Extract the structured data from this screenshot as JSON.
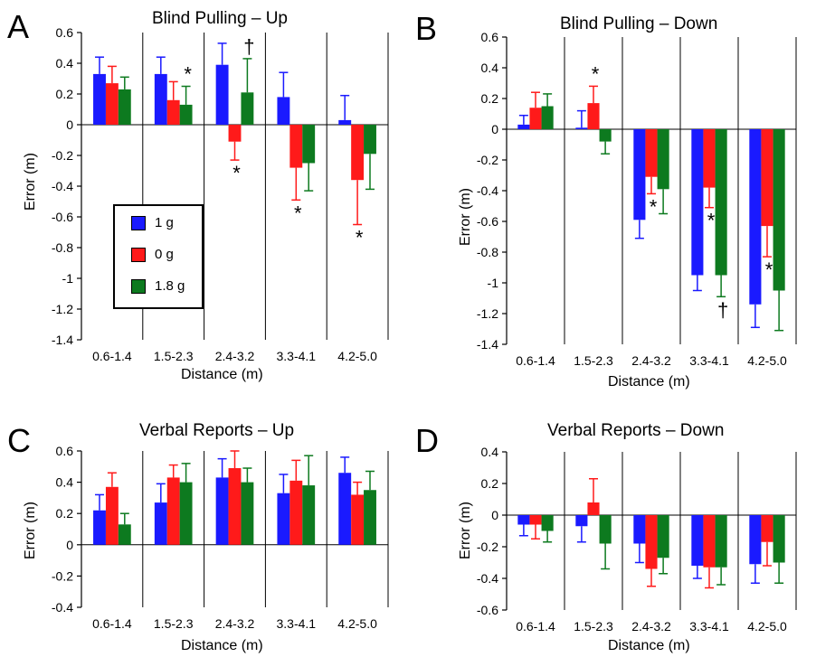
{
  "colors": {
    "s1": "#1a1aff",
    "s2": "#ff1a1a",
    "s3": "#0d7a1f"
  },
  "legend": [
    "1 g",
    "0 g",
    "1.8 g"
  ],
  "chart_data": [
    {
      "letter": "A",
      "title": "Blind Pulling – Up",
      "type": "bar",
      "xlabel": "Distance (m)",
      "ylabel": "Error (m)",
      "categories": [
        "0.6-1.4",
        "1.5-2.3",
        "2.4-3.2",
        "3.3-4.1",
        "4.2-5.0"
      ],
      "ylim": [
        -1.4,
        0.6
      ],
      "yticks": [
        "0.6",
        "0.4",
        "0.2",
        "0",
        "-0.2",
        "-0.4",
        "-0.6",
        "-0.8",
        "-1",
        "-1.2",
        "-1.4"
      ],
      "series": [
        {
          "name": "1 g",
          "values": [
            0.33,
            0.33,
            0.39,
            0.18,
            0.03
          ],
          "errors": [
            0.11,
            0.11,
            0.14,
            0.16,
            0.16
          ]
        },
        {
          "name": "0 g",
          "values": [
            0.27,
            0.16,
            -0.11,
            -0.28,
            -0.36
          ],
          "errors": [
            0.11,
            0.12,
            0.12,
            0.21,
            0.29
          ]
        },
        {
          "name": "1.8 g",
          "values": [
            0.23,
            0.13,
            0.21,
            -0.25,
            -0.19
          ],
          "errors": [
            0.08,
            0.12,
            0.22,
            0.18,
            0.23
          ]
        }
      ],
      "annotations": [
        {
          "text": "*",
          "category": 1,
          "series": 2,
          "side": "above"
        },
        {
          "text": "†",
          "category": 2,
          "series": 2,
          "side": "above"
        },
        {
          "text": "*",
          "category": 2,
          "series": 1,
          "side": "below"
        },
        {
          "text": "*",
          "category": 3,
          "series": 1,
          "side": "below"
        },
        {
          "text": "*",
          "category": 4,
          "series": 1,
          "side": "below"
        }
      ]
    },
    {
      "letter": "B",
      "title": "Blind Pulling – Down",
      "type": "bar",
      "xlabel": "Distance (m)",
      "ylabel": "Error (m)",
      "categories": [
        "0.6-1.4",
        "1.5-2.3",
        "2.4-3.2",
        "3.3-4.1",
        "4.2-5.0"
      ],
      "ylim": [
        -1.4,
        0.6
      ],
      "yticks": [
        "0.6",
        "0.4",
        "0.2",
        "0",
        "-0.2",
        "-0.4",
        "-0.6",
        "-0.8",
        "-1",
        "-1.2",
        "-1.4"
      ],
      "series": [
        {
          "name": "1 g",
          "values": [
            0.03,
            0.01,
            -0.59,
            -0.95,
            -1.14
          ],
          "errors": [
            0.06,
            0.11,
            0.12,
            0.1,
            0.15
          ]
        },
        {
          "name": "0 g",
          "values": [
            0.14,
            0.17,
            -0.31,
            -0.38,
            -0.63
          ],
          "errors": [
            0.1,
            0.11,
            0.11,
            0.13,
            0.2
          ]
        },
        {
          "name": "1.8 g",
          "values": [
            0.15,
            -0.08,
            -0.39,
            -0.95,
            -1.05
          ],
          "errors": [
            0.08,
            0.08,
            0.16,
            0.14,
            0.26
          ]
        }
      ],
      "annotations": [
        {
          "text": "*",
          "category": 1,
          "series": 1,
          "side": "above"
        },
        {
          "text": "*",
          "category": 2,
          "series": 1,
          "side": "below"
        },
        {
          "text": "*",
          "category": 3,
          "series": 1,
          "side": "below"
        },
        {
          "text": "†",
          "category": 3,
          "series": 2,
          "side": "below"
        },
        {
          "text": "*",
          "category": 4,
          "series": 1,
          "side": "below"
        }
      ]
    },
    {
      "letter": "C",
      "title": "Verbal Reports – Up",
      "type": "bar",
      "xlabel": "Distance (m)",
      "ylabel": "Error (m)",
      "categories": [
        "0.6-1.4",
        "1.5-2.3",
        "2.4-3.2",
        "3.3-4.1",
        "4.2-5.0"
      ],
      "ylim": [
        -0.4,
        0.6
      ],
      "yticks": [
        "0.6",
        "0.4",
        "0.2",
        "0",
        "-0.2",
        "-0.4"
      ],
      "series": [
        {
          "name": "1 g",
          "values": [
            0.22,
            0.27,
            0.43,
            0.33,
            0.46
          ],
          "errors": [
            0.1,
            0.12,
            0.12,
            0.12,
            0.1
          ]
        },
        {
          "name": "0 g",
          "values": [
            0.37,
            0.43,
            0.49,
            0.41,
            0.32
          ],
          "errors": [
            0.09,
            0.08,
            0.11,
            0.13,
            0.08
          ]
        },
        {
          "name": "1.8 g",
          "values": [
            0.13,
            0.4,
            0.4,
            0.38,
            0.35
          ],
          "errors": [
            0.07,
            0.12,
            0.09,
            0.19,
            0.12
          ]
        }
      ],
      "annotations": []
    },
    {
      "letter": "D",
      "title": "Verbal Reports – Down",
      "type": "bar",
      "xlabel": "Distance (m)",
      "ylabel": "Error (m)",
      "categories": [
        "0.6-1.4",
        "1.5-2.3",
        "2.4-3.2",
        "3.3-4.1",
        "4.2-5.0"
      ],
      "ylim": [
        -0.6,
        0.4
      ],
      "yticks": [
        "0.4",
        "0.2",
        "0",
        "-0.2",
        "-0.4",
        "-0.6"
      ],
      "series": [
        {
          "name": "1 g",
          "values": [
            -0.06,
            -0.07,
            -0.18,
            -0.32,
            -0.31
          ],
          "errors": [
            0.07,
            0.1,
            0.12,
            0.08,
            0.12
          ]
        },
        {
          "name": "0 g",
          "values": [
            -0.06,
            0.08,
            -0.34,
            -0.33,
            -0.17
          ],
          "errors": [
            0.09,
            0.15,
            0.11,
            0.13,
            0.15
          ]
        },
        {
          "name": "1.8 g",
          "values": [
            -0.1,
            -0.18,
            -0.27,
            -0.33,
            -0.3
          ],
          "errors": [
            0.07,
            0.16,
            0.1,
            0.11,
            0.13
          ]
        }
      ],
      "annotations": []
    }
  ]
}
